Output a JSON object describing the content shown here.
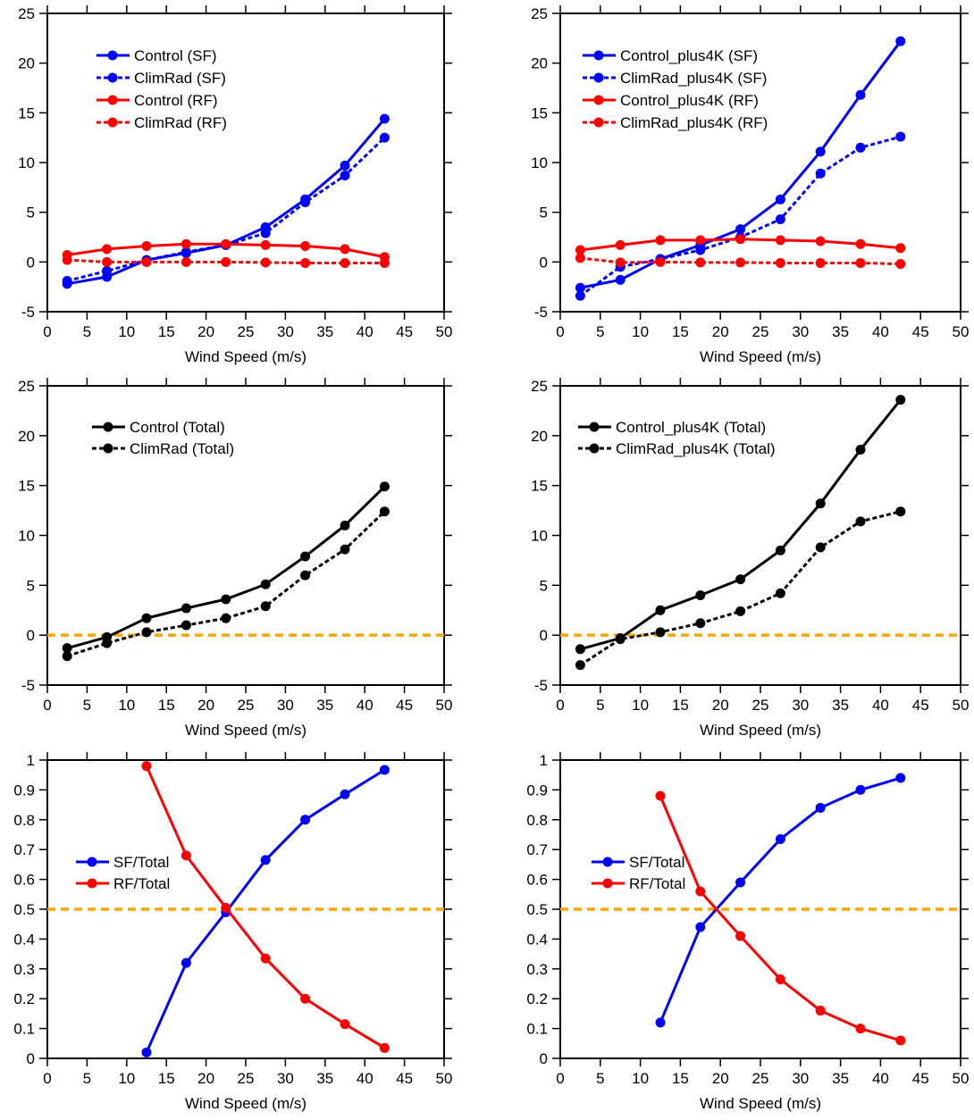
{
  "chart_data": [
    {
      "type": "line",
      "xlabel": "Wind Speed (m/s)",
      "ylabel": "",
      "xlim": [
        0,
        50
      ],
      "ylim": [
        -5,
        25
      ],
      "xticks": [
        "0",
        "5",
        "10",
        "15",
        "20",
        "25",
        "30",
        "35",
        "40",
        "45",
        "50"
      ],
      "yticks": [
        "-5",
        "0",
        "5",
        "10",
        "15",
        "20",
        "25"
      ],
      "legend": "top-left",
      "grid": false,
      "x": [
        2.5,
        7.5,
        12.5,
        17.5,
        22.5,
        27.5,
        32.5,
        37.5,
        42.5
      ],
      "series": [
        {
          "name": "Control (SF)",
          "color": "#0000ff",
          "dash": false,
          "values": [
            -2.2,
            -1.5,
            0.2,
            0.9,
            1.7,
            3.5,
            6.3,
            9.7,
            14.4
          ]
        },
        {
          "name": "ClimRad (SF)",
          "color": "#0000ff",
          "dash": true,
          "values": [
            -1.9,
            -0.9,
            0.2,
            1.0,
            1.7,
            2.9,
            6.0,
            8.7,
            12.5
          ]
        },
        {
          "name": "Control (RF)",
          "color": "#ff0000",
          "dash": false,
          "values": [
            0.7,
            1.3,
            1.6,
            1.8,
            1.8,
            1.7,
            1.6,
            1.3,
            0.5
          ]
        },
        {
          "name": "ClimRad (RF)",
          "color": "#ff0000",
          "dash": true,
          "values": [
            0.2,
            0.0,
            0.0,
            0.0,
            0.0,
            -0.05,
            -0.1,
            -0.1,
            -0.1
          ]
        }
      ]
    },
    {
      "type": "line",
      "xlabel": "Wind Speed (m/s)",
      "ylabel": "",
      "xlim": [
        0,
        50
      ],
      "ylim": [
        -5,
        25
      ],
      "xticks": [
        "0",
        "5",
        "10",
        "15",
        "20",
        "25",
        "30",
        "35",
        "40",
        "45",
        "50"
      ],
      "yticks": [
        "-5",
        "0",
        "5",
        "10",
        "15",
        "20",
        "25"
      ],
      "legend": "top-left",
      "grid": false,
      "x": [
        2.5,
        7.5,
        12.5,
        17.5,
        22.5,
        27.5,
        32.5,
        37.5,
        42.5
      ],
      "series": [
        {
          "name": "Control_plus4K (SF)",
          "color": "#0000ff",
          "dash": false,
          "values": [
            -2.6,
            -1.8,
            0.3,
            1.7,
            3.3,
            6.3,
            11.1,
            16.8,
            22.2
          ]
        },
        {
          "name": "ClimRad_plus4K (SF)",
          "color": "#0000ff",
          "dash": true,
          "values": [
            -3.4,
            -0.5,
            0.3,
            1.2,
            2.5,
            4.3,
            8.9,
            11.5,
            12.6
          ]
        },
        {
          "name": "Control_plus4K (RF)",
          "color": "#ff0000",
          "dash": false,
          "values": [
            1.2,
            1.7,
            2.2,
            2.2,
            2.3,
            2.2,
            2.1,
            1.8,
            1.4
          ]
        },
        {
          "name": "ClimRad_plus4K (RF)",
          "color": "#ff0000",
          "dash": true,
          "values": [
            0.4,
            -0.05,
            0.0,
            -0.05,
            -0.05,
            -0.1,
            -0.1,
            -0.1,
            -0.2
          ]
        }
      ]
    },
    {
      "type": "line",
      "xlabel": "Wind Speed (m/s)",
      "ylabel": "",
      "xlim": [
        0,
        50
      ],
      "ylim": [
        -5,
        25
      ],
      "xticks": [
        "0",
        "5",
        "10",
        "15",
        "20",
        "25",
        "30",
        "35",
        "40",
        "45",
        "50"
      ],
      "yticks": [
        "-5",
        "0",
        "5",
        "10",
        "15",
        "20",
        "25"
      ],
      "legend": "top-left",
      "grid": false,
      "reference_line": {
        "y": 0,
        "color": "#ffa500",
        "dash": true
      },
      "x": [
        2.5,
        7.5,
        12.5,
        17.5,
        22.5,
        27.5,
        32.5,
        37.5,
        42.5
      ],
      "series": [
        {
          "name": "Control (Total)",
          "color": "#000000",
          "dash": false,
          "values": [
            -1.3,
            -0.2,
            1.7,
            2.7,
            3.6,
            5.1,
            7.9,
            11.0,
            14.9
          ]
        },
        {
          "name": "ClimRad (Total)",
          "color": "#000000",
          "dash": true,
          "values": [
            -2.1,
            -0.8,
            0.3,
            1.0,
            1.7,
            2.9,
            6.0,
            8.6,
            12.4
          ]
        }
      ]
    },
    {
      "type": "line",
      "xlabel": "Wind Speed (m/s)",
      "ylabel": "",
      "xlim": [
        0,
        50
      ],
      "ylim": [
        -5,
        25
      ],
      "xticks": [
        "0",
        "5",
        "10",
        "15",
        "20",
        "25",
        "30",
        "35",
        "40",
        "45",
        "50"
      ],
      "yticks": [
        "-5",
        "0",
        "5",
        "10",
        "15",
        "20",
        "25"
      ],
      "legend": "top-left",
      "grid": false,
      "reference_line": {
        "y": 0,
        "color": "#ffa500",
        "dash": true
      },
      "x": [
        2.5,
        7.5,
        12.5,
        17.5,
        22.5,
        27.5,
        32.5,
        37.5,
        42.5
      ],
      "series": [
        {
          "name": "Control_plus4K (Total)",
          "color": "#000000",
          "dash": false,
          "values": [
            -1.4,
            -0.3,
            2.5,
            4.0,
            5.6,
            8.5,
            13.2,
            18.6,
            23.6
          ]
        },
        {
          "name": "ClimRad_plus4K (Total)",
          "color": "#000000",
          "dash": true,
          "values": [
            -3.0,
            -0.4,
            0.3,
            1.2,
            2.4,
            4.2,
            8.8,
            11.4,
            12.4
          ]
        }
      ]
    },
    {
      "type": "line",
      "xlabel": "Wind Speed (m/s)",
      "ylabel": "",
      "xlim": [
        0,
        50
      ],
      "ylim": [
        0,
        1
      ],
      "xticks": [
        "0",
        "5",
        "10",
        "15",
        "20",
        "25",
        "30",
        "35",
        "40",
        "45",
        "50"
      ],
      "yticks": [
        "0",
        "0.1",
        "0.2",
        "0.3",
        "0.4",
        "0.5",
        "0.6",
        "0.7",
        "0.8",
        "0.9",
        "1"
      ],
      "legend": "middle-left",
      "grid": false,
      "reference_line": {
        "y": 0.5,
        "color": "#ffa500",
        "dash": true
      },
      "x": [
        12.5,
        17.5,
        22.5,
        27.5,
        32.5,
        37.5,
        42.5
      ],
      "series": [
        {
          "name": "SF/Total",
          "color": "#0000ff",
          "dash": false,
          "values": [
            0.02,
            0.32,
            0.49,
            0.665,
            0.8,
            0.885,
            0.967
          ]
        },
        {
          "name": "RF/Total",
          "color": "#ff0000",
          "dash": false,
          "values": [
            0.98,
            0.68,
            0.505,
            0.335,
            0.2,
            0.115,
            0.035
          ]
        }
      ]
    },
    {
      "type": "line",
      "xlabel": "Wind Speed (m/s)",
      "ylabel": "",
      "xlim": [
        0,
        50
      ],
      "ylim": [
        0,
        1
      ],
      "xticks": [
        "0",
        "5",
        "10",
        "15",
        "20",
        "25",
        "30",
        "35",
        "40",
        "45",
        "50"
      ],
      "yticks": [
        "0",
        "0.1",
        "0.2",
        "0.3",
        "0.4",
        "0.5",
        "0.6",
        "0.7",
        "0.8",
        "0.9",
        "1"
      ],
      "legend": "middle-left",
      "grid": false,
      "reference_line": {
        "y": 0.5,
        "color": "#ffa500",
        "dash": true
      },
      "x": [
        12.5,
        17.5,
        22.5,
        27.5,
        32.5,
        37.5,
        42.5
      ],
      "series": [
        {
          "name": "SF/Total",
          "color": "#0000ff",
          "dash": false,
          "values": [
            0.12,
            0.44,
            0.59,
            0.735,
            0.84,
            0.9,
            0.94
          ]
        },
        {
          "name": "RF/Total",
          "color": "#ff0000",
          "dash": false,
          "values": [
            0.88,
            0.56,
            0.41,
            0.265,
            0.16,
            0.1,
            0.06
          ]
        }
      ]
    }
  ]
}
